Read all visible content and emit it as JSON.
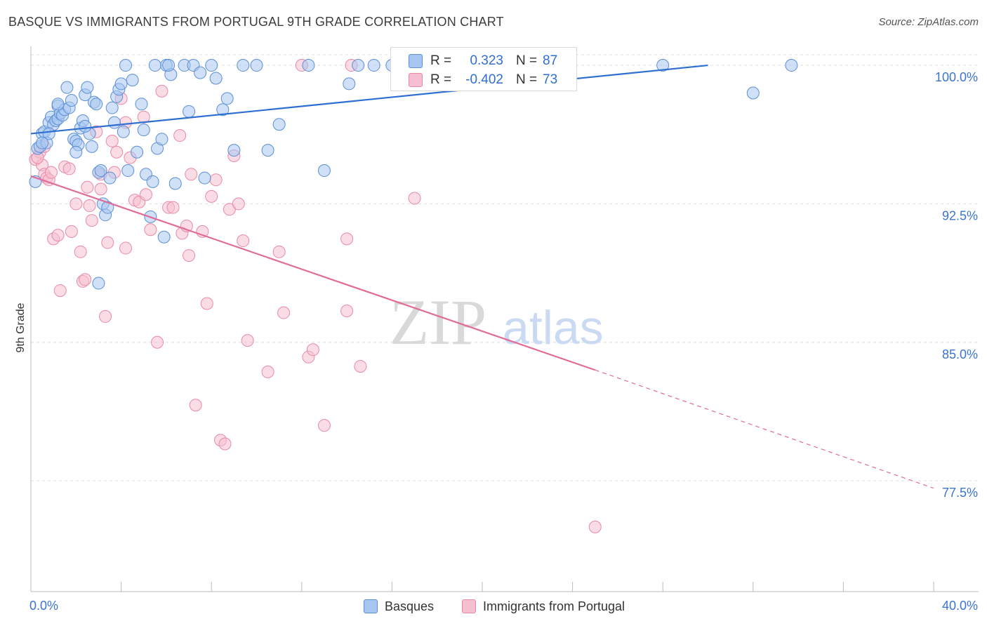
{
  "title": "BASQUE VS IMMIGRANTS FROM PORTUGAL 9TH GRADE CORRELATION CHART",
  "source": "Source: ZipAtlas.com",
  "watermark": {
    "zip": "ZIP",
    "atlas": "atlas"
  },
  "colors": {
    "blue_fill": "#a8c6f0",
    "blue_stroke": "#5b8fd6",
    "blue_line": "#2f6fd1",
    "pink_fill": "#f6bfd0",
    "pink_stroke": "#e889a8",
    "pink_line": "#e06d98",
    "tick_label": "#3b74cf",
    "grid": "#dddddd"
  },
  "stats": {
    "r_label": "R =",
    "n_label": "N =",
    "basques": {
      "r": "0.323",
      "n": "87"
    },
    "portugal": {
      "r": "-0.402",
      "n": "73"
    }
  },
  "legend": {
    "basques": "Basques",
    "portugal": "Immigrants from Portugal"
  },
  "chart_data": {
    "type": "scatter",
    "title": "BASQUE VS IMMIGRANTS FROM PORTUGAL 9TH GRADE CORRELATION CHART",
    "xlabel": "",
    "ylabel": "9th Grade",
    "xlim": [
      0,
      40
    ],
    "ylim": [
      71.5,
      100.8
    ],
    "x_tick_labels": {
      "left": "0.0%",
      "right": "40.0%"
    },
    "y_ticks": [
      100.0,
      92.5,
      85.0,
      77.5
    ],
    "y_tick_labels": [
      "100.0%",
      "92.5%",
      "85.0%",
      "77.5%"
    ],
    "grid": "horizontal dashed",
    "legend_position": "bottom-center",
    "series": [
      {
        "name": "Basques",
        "r": 0.323,
        "n": 87,
        "trend": {
          "x": [
            0,
            30
          ],
          "y": [
            96.3,
            100.0
          ],
          "dashed_to": null
        },
        "points": [
          [
            0.2,
            93.7
          ],
          [
            0.3,
            95.5
          ],
          [
            0.4,
            95.6
          ],
          [
            0.5,
            96.3
          ],
          [
            0.6,
            96.4
          ],
          [
            0.7,
            95.8
          ],
          [
            0.8,
            96.9
          ],
          [
            0.9,
            97.2
          ],
          [
            1.0,
            96.8
          ],
          [
            1.1,
            97.0
          ],
          [
            1.2,
            97.8
          ],
          [
            1.2,
            97.1
          ],
          [
            1.3,
            97.4
          ],
          [
            1.4,
            97.3
          ],
          [
            1.5,
            97.6
          ],
          [
            1.6,
            98.8
          ],
          [
            1.7,
            97.7
          ],
          [
            1.8,
            98.1
          ],
          [
            1.9,
            96.0
          ],
          [
            2.0,
            95.9
          ],
          [
            2.1,
            95.7
          ],
          [
            2.2,
            96.6
          ],
          [
            2.3,
            97.0
          ],
          [
            2.4,
            98.4
          ],
          [
            2.5,
            98.8
          ],
          [
            2.6,
            96.3
          ],
          [
            2.7,
            95.6
          ],
          [
            2.8,
            98.0
          ],
          [
            2.9,
            97.9
          ],
          [
            3.0,
            94.2
          ],
          [
            3.1,
            94.3
          ],
          [
            3.2,
            92.5
          ],
          [
            3.3,
            91.9
          ],
          [
            3.4,
            92.3
          ],
          [
            3.5,
            93.9
          ],
          [
            3.6,
            97.7
          ],
          [
            3.7,
            96.9
          ],
          [
            3.8,
            98.3
          ],
          [
            3.9,
            98.7
          ],
          [
            4.0,
            99.0
          ],
          [
            4.1,
            96.4
          ],
          [
            4.3,
            94.3
          ],
          [
            4.5,
            99.2
          ],
          [
            4.7,
            95.3
          ],
          [
            4.9,
            97.9
          ],
          [
            5.0,
            96.5
          ],
          [
            5.1,
            94.1
          ],
          [
            5.3,
            91.8
          ],
          [
            5.4,
            93.7
          ],
          [
            5.6,
            95.5
          ],
          [
            5.8,
            96.0
          ],
          [
            5.9,
            90.7
          ],
          [
            6.0,
            100.0
          ],
          [
            6.2,
            99.5
          ],
          [
            6.4,
            93.6
          ],
          [
            6.8,
            100.0
          ],
          [
            7.0,
            97.5
          ],
          [
            7.2,
            100.0
          ],
          [
            7.5,
            99.6
          ],
          [
            7.7,
            93.9
          ],
          [
            8.0,
            100.0
          ],
          [
            8.2,
            99.3
          ],
          [
            8.5,
            97.6
          ],
          [
            8.7,
            98.2
          ],
          [
            9.0,
            95.4
          ],
          [
            9.4,
            100.0
          ],
          [
            10.0,
            100.0
          ],
          [
            10.5,
            95.4
          ],
          [
            11.0,
            96.8
          ],
          [
            12.3,
            100.0
          ],
          [
            13.0,
            94.3
          ],
          [
            14.1,
            99.0
          ],
          [
            14.5,
            100.0
          ],
          [
            15.2,
            100.0
          ],
          [
            16.0,
            100.0
          ],
          [
            3.0,
            88.2
          ],
          [
            2.0,
            95.3
          ],
          [
            4.2,
            100.0
          ],
          [
            1.2,
            97.9
          ],
          [
            0.8,
            96.3
          ],
          [
            2.4,
            96.7
          ],
          [
            5.5,
            100.0
          ],
          [
            6.1,
            100.0
          ],
          [
            0.5,
            95.8
          ],
          [
            28.0,
            100.0
          ],
          [
            32.0,
            98.5
          ],
          [
            33.7,
            100.0
          ]
        ]
      },
      {
        "name": "Immigrants from Portugal",
        "r": -0.402,
        "n": 73,
        "trend": {
          "x": [
            0,
            25
          ],
          "y": [
            94.0,
            83.5
          ],
          "dashed_to": [
            40,
            77.1
          ]
        },
        "points": [
          [
            0.2,
            94.9
          ],
          [
            0.4,
            95.3
          ],
          [
            0.5,
            94.6
          ],
          [
            0.6,
            94.1
          ],
          [
            0.7,
            93.9
          ],
          [
            0.8,
            93.8
          ],
          [
            0.9,
            94.2
          ],
          [
            1.0,
            90.6
          ],
          [
            1.2,
            90.8
          ],
          [
            1.3,
            87.8
          ],
          [
            1.5,
            94.5
          ],
          [
            1.7,
            94.4
          ],
          [
            1.8,
            91.0
          ],
          [
            2.0,
            92.5
          ],
          [
            2.2,
            89.9
          ],
          [
            2.3,
            88.3
          ],
          [
            2.4,
            88.4
          ],
          [
            2.5,
            93.4
          ],
          [
            2.6,
            92.4
          ],
          [
            2.7,
            91.6
          ],
          [
            2.9,
            96.4
          ],
          [
            3.1,
            94.1
          ],
          [
            3.1,
            93.3
          ],
          [
            3.3,
            86.4
          ],
          [
            3.4,
            90.4
          ],
          [
            3.6,
            95.9
          ],
          [
            3.7,
            94.2
          ],
          [
            3.8,
            95.3
          ],
          [
            4.0,
            98.2
          ],
          [
            4.2,
            96.9
          ],
          [
            4.2,
            90.1
          ],
          [
            4.4,
            95.0
          ],
          [
            4.6,
            92.7
          ],
          [
            4.8,
            92.6
          ],
          [
            5.0,
            97.2
          ],
          [
            5.1,
            93.0
          ],
          [
            5.3,
            91.1
          ],
          [
            5.6,
            85.0
          ],
          [
            5.8,
            98.6
          ],
          [
            6.1,
            92.3
          ],
          [
            6.3,
            92.3
          ],
          [
            6.6,
            96.2
          ],
          [
            6.7,
            90.9
          ],
          [
            6.9,
            91.3
          ],
          [
            7.1,
            94.1
          ],
          [
            7.3,
            81.6
          ],
          [
            7.6,
            91.0
          ],
          [
            7.8,
            87.1
          ],
          [
            8.0,
            92.9
          ],
          [
            8.2,
            93.8
          ],
          [
            8.4,
            79.7
          ],
          [
            8.6,
            79.5
          ],
          [
            8.8,
            92.2
          ],
          [
            9.0,
            95.1
          ],
          [
            9.2,
            92.5
          ],
          [
            9.4,
            90.5
          ],
          [
            9.6,
            85.1
          ],
          [
            10.5,
            83.4
          ],
          [
            11.0,
            89.9
          ],
          [
            11.2,
            86.6
          ],
          [
            12.3,
            84.2
          ],
          [
            13.0,
            80.5
          ],
          [
            12.5,
            84.6
          ],
          [
            14.0,
            86.7
          ],
          [
            14.6,
            83.7
          ],
          [
            17.0,
            92.8
          ],
          [
            12.0,
            100.0
          ],
          [
            14.2,
            100.0
          ],
          [
            14.0,
            90.6
          ],
          [
            7.0,
            89.7
          ],
          [
            0.3,
            95.0
          ],
          [
            25.0,
            75.0
          ],
          [
            0.6,
            95.6
          ]
        ]
      }
    ]
  }
}
